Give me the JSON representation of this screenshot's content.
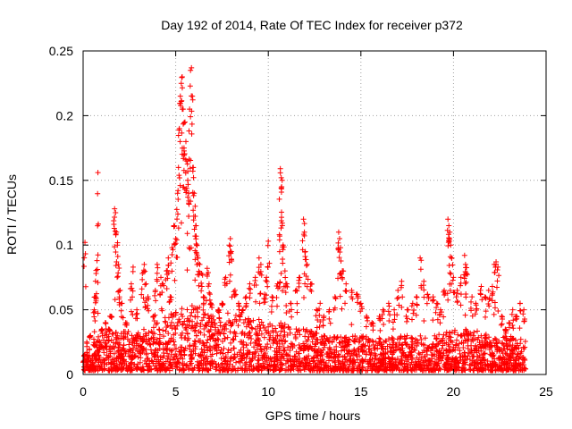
{
  "chart_data": {
    "type": "scatter",
    "title": "Day 192 of 2014, Rate Of TEC Index for receiver p372",
    "xlabel": "GPS time / hours",
    "ylabel": "ROTI / TECUs",
    "xlim": [
      0,
      25
    ],
    "ylim": [
      0,
      0.25
    ],
    "x_ticks": [
      "0",
      "5",
      "10",
      "15",
      "20",
      "25"
    ],
    "y_ticks": [
      "0",
      "0.05",
      "0.1",
      "0.15",
      "0.2",
      "0.25"
    ],
    "grid": true,
    "marker": "plus",
    "color": "#ff0000",
    "series": [
      {
        "points": [
          [
            0.1,
            0.102
          ],
          [
            0.2,
            0.025
          ],
          [
            0.4,
            0.03
          ],
          [
            0.6,
            0.05
          ],
          [
            0.65,
            0.06
          ],
          [
            0.7,
            0.078
          ],
          [
            0.75,
            0.088
          ],
          [
            0.8,
            0.156
          ],
          [
            1.0,
            0.035
          ],
          [
            1.2,
            0.04
          ],
          [
            1.4,
            0.035
          ],
          [
            1.5,
            0.045
          ],
          [
            1.7,
            0.128
          ],
          [
            1.75,
            0.125
          ],
          [
            1.8,
            0.11
          ],
          [
            1.85,
            0.1
          ],
          [
            1.9,
            0.085
          ],
          [
            2.0,
            0.065
          ],
          [
            2.1,
            0.055
          ],
          [
            2.3,
            0.04
          ],
          [
            2.6,
            0.07
          ],
          [
            2.7,
            0.083
          ],
          [
            2.9,
            0.05
          ],
          [
            3.2,
            0.078
          ],
          [
            3.3,
            0.085
          ],
          [
            3.4,
            0.07
          ],
          [
            3.5,
            0.06
          ],
          [
            3.8,
            0.045
          ],
          [
            3.9,
            0.065
          ],
          [
            4.0,
            0.085
          ],
          [
            4.2,
            0.075
          ],
          [
            4.3,
            0.07
          ],
          [
            4.5,
            0.08
          ],
          [
            4.6,
            0.09
          ],
          [
            4.7,
            0.06
          ],
          [
            4.8,
            0.098
          ],
          [
            4.9,
            0.115
          ],
          [
            5.0,
            0.105
          ],
          [
            5.1,
            0.14
          ],
          [
            5.15,
            0.16
          ],
          [
            5.2,
            0.19
          ],
          [
            5.25,
            0.215
          ],
          [
            5.3,
            0.225
          ],
          [
            5.35,
            0.23
          ],
          [
            5.4,
            0.205
          ],
          [
            5.45,
            0.175
          ],
          [
            5.5,
            0.195
          ],
          [
            5.55,
            0.18
          ],
          [
            5.6,
            0.165
          ],
          [
            5.65,
            0.15
          ],
          [
            5.7,
            0.14
          ],
          [
            5.75,
            0.205
          ],
          [
            5.8,
            0.235
          ],
          [
            5.85,
            0.237
          ],
          [
            5.9,
            0.215
          ],
          [
            5.95,
            0.16
          ],
          [
            6.0,
            0.14
          ],
          [
            6.05,
            0.13
          ],
          [
            6.1,
            0.115
          ],
          [
            6.15,
            0.1
          ],
          [
            6.2,
            0.09
          ],
          [
            6.3,
            0.085
          ],
          [
            6.4,
            0.078
          ],
          [
            6.5,
            0.06
          ],
          [
            6.7,
            0.082
          ],
          [
            6.8,
            0.07
          ],
          [
            6.9,
            0.055
          ],
          [
            7.0,
            0.045
          ],
          [
            7.3,
            0.05
          ],
          [
            7.5,
            0.055
          ],
          [
            7.7,
            0.075
          ],
          [
            7.9,
            0.1
          ],
          [
            7.95,
            0.105
          ],
          [
            8.0,
            0.095
          ],
          [
            8.2,
            0.065
          ],
          [
            8.4,
            0.055
          ],
          [
            8.6,
            0.05
          ],
          [
            8.8,
            0.06
          ],
          [
            9.0,
            0.07
          ],
          [
            9.3,
            0.075
          ],
          [
            9.5,
            0.09
          ],
          [
            9.6,
            0.085
          ],
          [
            9.8,
            0.062
          ],
          [
            9.9,
            0.075
          ],
          [
            10.0,
            0.103
          ],
          [
            10.2,
            0.06
          ],
          [
            10.5,
            0.07
          ],
          [
            10.6,
            0.108
          ],
          [
            10.65,
            0.159
          ],
          [
            10.7,
            0.152
          ],
          [
            10.72,
            0.145
          ],
          [
            10.75,
            0.117
          ],
          [
            10.8,
            0.1
          ],
          [
            10.9,
            0.08
          ],
          [
            11.0,
            0.07
          ],
          [
            11.2,
            0.055
          ],
          [
            11.5,
            0.065
          ],
          [
            11.7,
            0.075
          ],
          [
            11.9,
            0.12
          ],
          [
            11.95,
            0.11
          ],
          [
            12.0,
            0.095
          ],
          [
            12.1,
            0.085
          ],
          [
            12.3,
            0.07
          ],
          [
            12.6,
            0.05
          ],
          [
            12.8,
            0.055
          ],
          [
            13.0,
            0.045
          ],
          [
            13.3,
            0.05
          ],
          [
            13.6,
            0.06
          ],
          [
            13.8,
            0.11
          ],
          [
            13.85,
            0.105
          ],
          [
            13.9,
            0.098
          ],
          [
            14.0,
            0.08
          ],
          [
            14.2,
            0.07
          ],
          [
            14.5,
            0.065
          ],
          [
            14.8,
            0.062
          ],
          [
            15.0,
            0.055
          ],
          [
            15.3,
            0.045
          ],
          [
            15.6,
            0.04
          ],
          [
            16.0,
            0.045
          ],
          [
            16.2,
            0.05
          ],
          [
            16.5,
            0.055
          ],
          [
            16.8,
            0.05
          ],
          [
            17.0,
            0.065
          ],
          [
            17.2,
            0.072
          ],
          [
            17.5,
            0.05
          ],
          [
            17.8,
            0.055
          ],
          [
            18.0,
            0.06
          ],
          [
            18.2,
            0.09
          ],
          [
            18.4,
            0.072
          ],
          [
            18.6,
            0.062
          ],
          [
            18.9,
            0.06
          ],
          [
            19.1,
            0.055
          ],
          [
            19.3,
            0.05
          ],
          [
            19.5,
            0.065
          ],
          [
            19.7,
            0.12
          ],
          [
            19.75,
            0.115
          ],
          [
            19.8,
            0.11
          ],
          [
            19.85,
            0.1
          ],
          [
            19.9,
            0.09
          ],
          [
            20.0,
            0.075
          ],
          [
            20.2,
            0.065
          ],
          [
            20.4,
            0.075
          ],
          [
            20.6,
            0.092
          ],
          [
            20.65,
            0.085
          ],
          [
            20.7,
            0.078
          ],
          [
            21.0,
            0.06
          ],
          [
            21.2,
            0.055
          ],
          [
            21.5,
            0.068
          ],
          [
            21.7,
            0.06
          ],
          [
            21.9,
            0.065
          ],
          [
            22.1,
            0.068
          ],
          [
            22.2,
            0.085
          ],
          [
            22.3,
            0.087
          ],
          [
            22.4,
            0.083
          ],
          [
            22.6,
            0.045
          ],
          [
            22.8,
            0.035
          ],
          [
            23.0,
            0.04
          ],
          [
            23.2,
            0.05
          ],
          [
            23.4,
            0.045
          ],
          [
            23.6,
            0.055
          ],
          [
            23.8,
            0.05
          ]
        ]
      }
    ],
    "baseline_band": {
      "x_start": 0.0,
      "x_end": 23.9,
      "y_min": 0.003,
      "envelope": [
        [
          0,
          0.025
        ],
        [
          1,
          0.03
        ],
        [
          2,
          0.035
        ],
        [
          3,
          0.033
        ],
        [
          4,
          0.04
        ],
        [
          5,
          0.05
        ],
        [
          6,
          0.055
        ],
        [
          7,
          0.045
        ],
        [
          8,
          0.05
        ],
        [
          9,
          0.045
        ],
        [
          10,
          0.04
        ],
        [
          11,
          0.04
        ],
        [
          12,
          0.035
        ],
        [
          13,
          0.03
        ],
        [
          14,
          0.03
        ],
        [
          15,
          0.03
        ],
        [
          16,
          0.028
        ],
        [
          17,
          0.03
        ],
        [
          18,
          0.03
        ],
        [
          19,
          0.03
        ],
        [
          20,
          0.035
        ],
        [
          21,
          0.035
        ],
        [
          22,
          0.03
        ],
        [
          23,
          0.03
        ],
        [
          23.9,
          0.028
        ]
      ]
    }
  }
}
